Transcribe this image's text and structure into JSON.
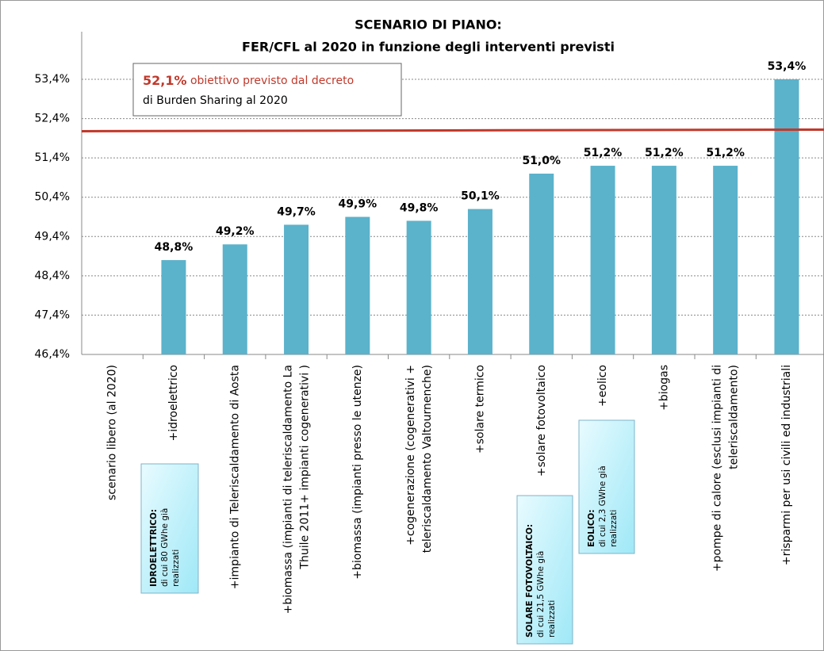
{
  "chart_data": {
    "type": "bar",
    "title": [
      "SCENARIO DI PIANO:",
      "FER/CFL al 2020 in funzione degli interventi previsti"
    ],
    "categories": [
      "scenario libero (al 2020)",
      "+idroelettrico",
      "+impianto di Teleriscaldamento di Aosta",
      "+biomassa (impianti di teleriscaldamento La Thuile 2011+ impianti cogenerativi )",
      "+biomassa (impianti presso le utenze)",
      "+cogenerazione (cogenerativi + teleriscaldamento Valtournenche)",
      "+solare termico",
      "+solare fotovoltaico",
      "+eolico",
      "+biogas",
      "+pompe di calore (esclusi impianti di teleriscaldamento)",
      "+risparmi per usi civili ed industriali"
    ],
    "values": [
      null,
      48.8,
      49.2,
      49.7,
      49.9,
      49.8,
      50.1,
      51.0,
      51.2,
      51.2,
      51.2,
      53.4
    ],
    "value_labels": [
      null,
      "48,8%",
      "49,2%",
      "49,7%",
      "49,9%",
      "49,8%",
      "50,1%",
      "51,0%",
      "51,2%",
      "51,2%",
      "51,2%",
      "53,4%"
    ],
    "color": "#5bb2cb",
    "ylim": [
      46.4,
      54.5
    ],
    "yticks": [
      {
        "value": 46.4,
        "label": "46,4%"
      },
      {
        "value": 47.4,
        "label": "47,4%"
      },
      {
        "value": 48.4,
        "label": "48,4%"
      },
      {
        "value": 49.4,
        "label": "49,4%"
      },
      {
        "value": 50.4,
        "label": "50,4%"
      },
      {
        "value": 51.4,
        "label": "51,4%"
      },
      {
        "value": 52.4,
        "label": "52,4%"
      },
      {
        "value": 53.4,
        "label": "53,4%"
      }
    ],
    "grid": true,
    "target": {
      "value": 52.1,
      "label": "52,1%",
      "color": "#c0392b",
      "text": [
        "obiettivo previsto dal decreto",
        "di Burden Sharing al 2020"
      ]
    },
    "annotations": [
      {
        "title": "IDROELETTRICO:",
        "lines": [
          "di cui 80 GWhe già",
          "realizzati"
        ]
      },
      {
        "title": "SOLARE FOTOVOLTAICO:",
        "lines": [
          "di cui 21,5 GWhe già",
          "realizzati"
        ]
      },
      {
        "title": "EOLICO:",
        "lines": [
          "di cui 2,3 GWhe già",
          "realizzati"
        ]
      }
    ]
  }
}
